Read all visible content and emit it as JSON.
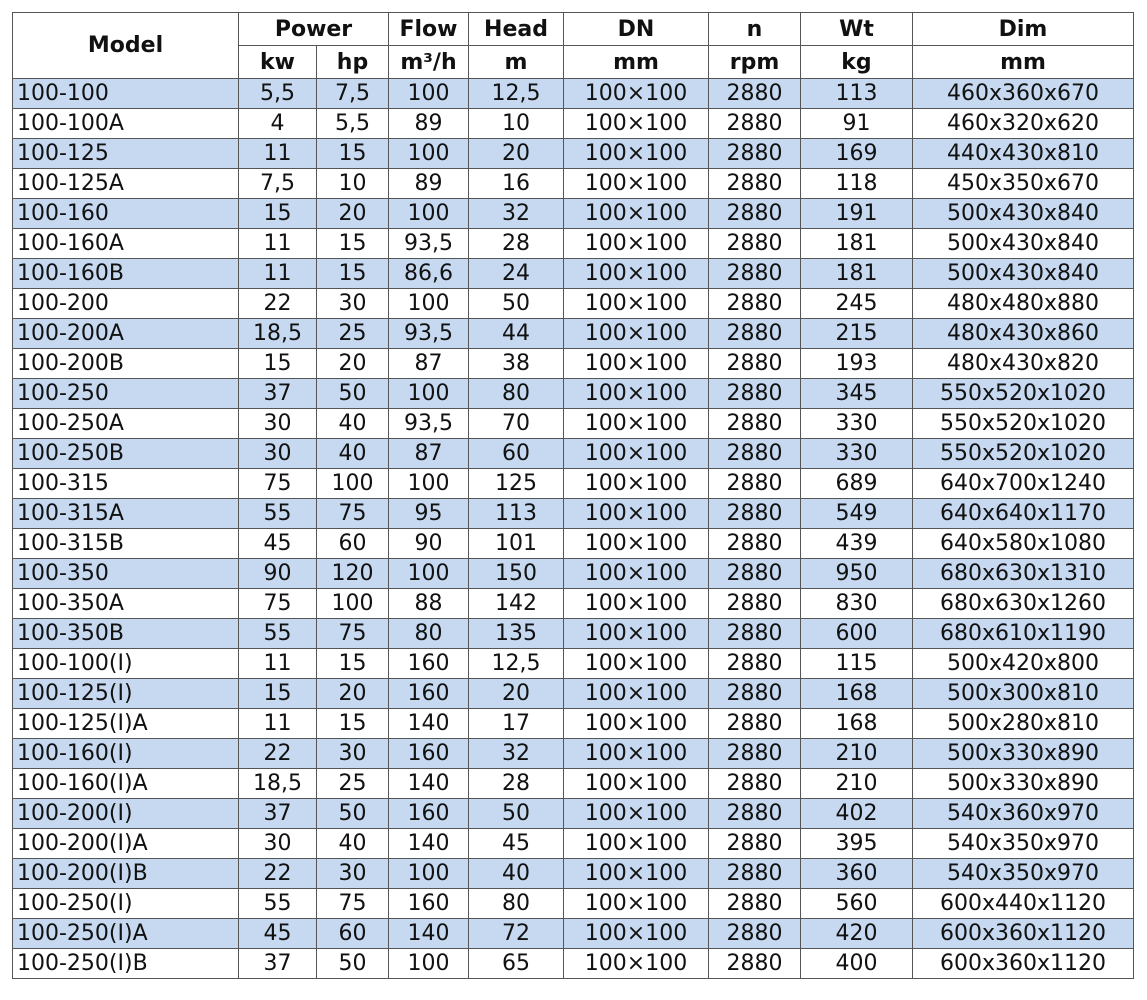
{
  "header": {
    "top": [
      "Model",
      "Power",
      "Flow",
      "Head",
      "DN",
      "n",
      "Wt",
      "Dim"
    ],
    "sub": [
      "kw",
      "hp",
      "m³/h",
      "m",
      "mm",
      "rpm",
      "kg",
      "mm"
    ]
  },
  "table": {
    "rows": [
      [
        "100-100",
        "5,5",
        "7,5",
        "100",
        "12,5",
        "100×100",
        "2880",
        "113",
        "460x360x670"
      ],
      [
        "100-100A",
        "4",
        "5,5",
        "89",
        "10",
        "100×100",
        "2880",
        "91",
        "460x320x620"
      ],
      [
        "100-125",
        "11",
        "15",
        "100",
        "20",
        "100×100",
        "2880",
        "169",
        "440x430x810"
      ],
      [
        "100-125A",
        "7,5",
        "10",
        "89",
        "16",
        "100×100",
        "2880",
        "118",
        "450x350x670"
      ],
      [
        "100-160",
        "15",
        "20",
        "100",
        "32",
        "100×100",
        "2880",
        "191",
        "500x430x840"
      ],
      [
        "100-160A",
        "11",
        "15",
        "93,5",
        "28",
        "100×100",
        "2880",
        "181",
        "500x430x840"
      ],
      [
        "100-160B",
        "11",
        "15",
        "86,6",
        "24",
        "100×100",
        "2880",
        "181",
        "500x430x840"
      ],
      [
        "100-200",
        "22",
        "30",
        "100",
        "50",
        "100×100",
        "2880",
        "245",
        "480x480x880"
      ],
      [
        "100-200A",
        "18,5",
        "25",
        "93,5",
        "44",
        "100×100",
        "2880",
        "215",
        "480x430x860"
      ],
      [
        "100-200B",
        "15",
        "20",
        "87",
        "38",
        "100×100",
        "2880",
        "193",
        "480x430x820"
      ],
      [
        "100-250",
        "37",
        "50",
        "100",
        "80",
        "100×100",
        "2880",
        "345",
        "550x520x1020"
      ],
      [
        "100-250A",
        "30",
        "40",
        "93,5",
        "70",
        "100×100",
        "2880",
        "330",
        "550x520x1020"
      ],
      [
        "100-250B",
        "30",
        "40",
        "87",
        "60",
        "100×100",
        "2880",
        "330",
        "550x520x1020"
      ],
      [
        "100-315",
        "75",
        "100",
        "100",
        "125",
        "100×100",
        "2880",
        "689",
        "640x700x1240"
      ],
      [
        "100-315A",
        "55",
        "75",
        "95",
        "113",
        "100×100",
        "2880",
        "549",
        "640x640x1170"
      ],
      [
        "100-315B",
        "45",
        "60",
        "90",
        "101",
        "100×100",
        "2880",
        "439",
        "640x580x1080"
      ],
      [
        "100-350",
        "90",
        "120",
        "100",
        "150",
        "100×100",
        "2880",
        "950",
        "680x630x1310"
      ],
      [
        "100-350A",
        "75",
        "100",
        "88",
        "142",
        "100×100",
        "2880",
        "830",
        "680x630x1260"
      ],
      [
        "100-350B",
        "55",
        "75",
        "80",
        "135",
        "100×100",
        "2880",
        "600",
        "680x610x1190"
      ],
      [
        "100-100(I)",
        "11",
        "15",
        "160",
        "12,5",
        "100×100",
        "2880",
        "115",
        "500x420x800"
      ],
      [
        "100-125(I)",
        "15",
        "20",
        "160",
        "20",
        "100×100",
        "2880",
        "168",
        "500x300x810"
      ],
      [
        "100-125(I)A",
        "11",
        "15",
        "140",
        "17",
        "100×100",
        "2880",
        "168",
        "500x280x810"
      ],
      [
        "100-160(I)",
        "22",
        "30",
        "160",
        "32",
        "100×100",
        "2880",
        "210",
        "500x330x890"
      ],
      [
        "100-160(I)A",
        "18,5",
        "25",
        "140",
        "28",
        "100×100",
        "2880",
        "210",
        "500x330x890"
      ],
      [
        "100-200(I)",
        "37",
        "50",
        "160",
        "50",
        "100×100",
        "2880",
        "402",
        "540x360x970"
      ],
      [
        "100-200(I)A",
        "30",
        "40",
        "140",
        "45",
        "100×100",
        "2880",
        "395",
        "540x350x970"
      ],
      [
        "100-200(I)B",
        "22",
        "30",
        "100",
        "40",
        "100×100",
        "2880",
        "360",
        "540x350x970"
      ],
      [
        "100-250(I)",
        "55",
        "75",
        "160",
        "80",
        "100×100",
        "2880",
        "560",
        "600x440x1120"
      ],
      [
        "100-250(I)A",
        "45",
        "60",
        "140",
        "72",
        "100×100",
        "2880",
        "420",
        "600x360x1120"
      ],
      [
        "100-250(I)B",
        "37",
        "50",
        "100",
        "65",
        "100×100",
        "2880",
        "400",
        "600x360x1120"
      ]
    ]
  }
}
